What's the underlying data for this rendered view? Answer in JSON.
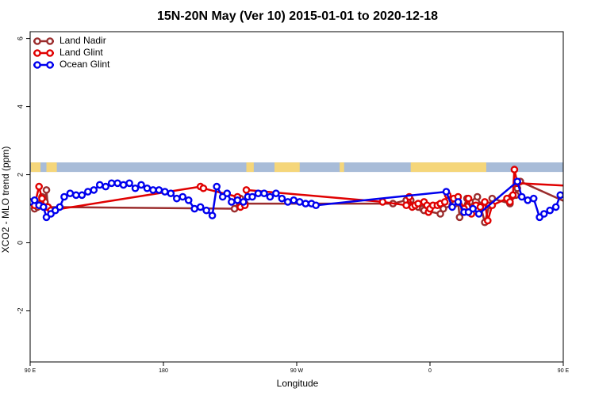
{
  "chart_data": {
    "type": "line",
    "title": "15N-20N May (Ver 10)   2015-01-01 to 2020-12-18",
    "xlabel": "Longitude",
    "ylabel": "XCO2 - MLO trend (ppm)",
    "xlim": [
      90,
      450
    ],
    "ylim": [
      -3.5,
      6.2
    ],
    "xticks": [
      {
        "value": 90,
        "label": "90 E"
      },
      {
        "value": 180,
        "label": "180"
      },
      {
        "value": 270,
        "label": "90 W"
      },
      {
        "value": 360,
        "label": "0"
      },
      {
        "value": 450,
        "label": "90 E"
      },
      {
        "value": 540,
        "label": "180"
      }
    ],
    "yticks": [
      -2,
      0,
      2,
      4,
      6
    ],
    "grid": false,
    "legend_position": "top-left",
    "land_strip": {
      "y_range": [
        2.08,
        2.36
      ],
      "ocean_color": "#a8bcd8",
      "land_color": "#f5d67a",
      "land_segments": [
        [
          90.5,
          97
        ],
        [
          101,
          108
        ],
        [
          236,
          241
        ],
        [
          255,
          272
        ],
        [
          299,
          302
        ],
        [
          347,
          398
        ],
        [
          485,
          498
        ],
        [
          504,
          520
        ]
      ]
    },
    "series": [
      {
        "name": "Land Nadir",
        "color": "#9b2d2d",
        "points": [
          [
            93,
            1.0
          ],
          [
            95,
            1.05
          ],
          [
            97,
            1.15
          ],
          [
            98,
            1.35
          ],
          [
            100,
            1.2
          ],
          [
            101,
            1.55
          ],
          [
            102,
            1.05
          ],
          [
            228,
            1.0
          ],
          [
            232,
            1.3
          ],
          [
            235,
            1.15
          ],
          [
            335,
            1.15
          ],
          [
            344,
            1.25
          ],
          [
            347,
            1.25
          ],
          [
            352,
            1.05
          ],
          [
            355,
            1.0
          ],
          [
            356,
            0.95
          ],
          [
            367,
            0.85
          ],
          [
            369,
            1.0
          ],
          [
            375,
            1.1
          ],
          [
            377,
            1.15
          ],
          [
            379,
            1.2
          ],
          [
            380,
            0.75
          ],
          [
            385,
            1.3
          ],
          [
            387,
            1.2
          ],
          [
            392,
            1.35
          ],
          [
            394,
            1.1
          ],
          [
            397,
            0.6
          ],
          [
            400,
            1.1
          ],
          [
            402,
            1.3
          ],
          [
            414,
            1.15
          ],
          [
            415,
            1.35
          ],
          [
            418,
            1.4
          ],
          [
            419,
            1.6
          ],
          [
            421,
            1.8
          ],
          [
            462,
            1.0
          ],
          [
            464,
            1.1
          ],
          [
            466,
            1.2
          ],
          [
            468,
            1.3
          ],
          [
            469,
            1.55
          ],
          [
            471,
            1.1
          ]
        ]
      },
      {
        "name": "Land Glint",
        "color": "#e00000",
        "points": [
          [
            93,
            1.1
          ],
          [
            96,
            1.65
          ],
          [
            98,
            1.3
          ],
          [
            100,
            1.05
          ],
          [
            102,
            1.05
          ],
          [
            104,
            0.95
          ],
          [
            205,
            1.65
          ],
          [
            207,
            1.6
          ],
          [
            230,
            1.35
          ],
          [
            232,
            1.05
          ],
          [
            235,
            1.1
          ],
          [
            236,
            1.55
          ],
          [
            328,
            1.2
          ],
          [
            344,
            1.1
          ],
          [
            346,
            1.35
          ],
          [
            348,
            1.05
          ],
          [
            350,
            1.1
          ],
          [
            352,
            1.15
          ],
          [
            356,
            1.2
          ],
          [
            358,
            1.1
          ],
          [
            359,
            0.9
          ],
          [
            360,
            1.0
          ],
          [
            362,
            1.1
          ],
          [
            365,
            1.1
          ],
          [
            367,
            1.15
          ],
          [
            370,
            1.2
          ],
          [
            372,
            1.4
          ],
          [
            376,
            1.3
          ],
          [
            379,
            1.35
          ],
          [
            383,
            1.0
          ],
          [
            386,
            1.3
          ],
          [
            388,
            0.85
          ],
          [
            391,
            1.1
          ],
          [
            394,
            1.05
          ],
          [
            397,
            1.2
          ],
          [
            399,
            0.65
          ],
          [
            402,
            1.1
          ],
          [
            412,
            1.3
          ],
          [
            414,
            1.2
          ],
          [
            416,
            1.4
          ],
          [
            417,
            2.15
          ],
          [
            419,
            1.75
          ],
          [
            465,
            1.65
          ],
          [
            467,
            1.2
          ],
          [
            469,
            1.1
          ],
          [
            471,
            1.0
          ],
          [
            473,
            1.1
          ]
        ]
      },
      {
        "name": "Ocean Glint",
        "color": "#0000ee",
        "points": [
          [
            90,
            1.2
          ],
          [
            93,
            1.25
          ],
          [
            96,
            1.1
          ],
          [
            99,
            1.05
          ],
          [
            101,
            0.75
          ],
          [
            104,
            0.85
          ],
          [
            107,
            0.95
          ],
          [
            110,
            1.05
          ],
          [
            113,
            1.35
          ],
          [
            117,
            1.45
          ],
          [
            121,
            1.4
          ],
          [
            125,
            1.4
          ],
          [
            129,
            1.5
          ],
          [
            133,
            1.55
          ],
          [
            137,
            1.7
          ],
          [
            141,
            1.65
          ],
          [
            145,
            1.75
          ],
          [
            149,
            1.75
          ],
          [
            153,
            1.7
          ],
          [
            157,
            1.75
          ],
          [
            161,
            1.6
          ],
          [
            165,
            1.7
          ],
          [
            169,
            1.6
          ],
          [
            173,
            1.55
          ],
          [
            177,
            1.55
          ],
          [
            181,
            1.5
          ],
          [
            185,
            1.45
          ],
          [
            189,
            1.3
          ],
          [
            193,
            1.35
          ],
          [
            197,
            1.25
          ],
          [
            201,
            1.0
          ],
          [
            205,
            1.05
          ],
          [
            209,
            0.95
          ],
          [
            213,
            0.8
          ],
          [
            216,
            1.65
          ],
          [
            220,
            1.35
          ],
          [
            223,
            1.45
          ],
          [
            226,
            1.2
          ],
          [
            230,
            1.25
          ],
          [
            234,
            1.2
          ],
          [
            237,
            1.35
          ],
          [
            240,
            1.35
          ],
          [
            244,
            1.45
          ],
          [
            248,
            1.45
          ],
          [
            252,
            1.35
          ],
          [
            256,
            1.45
          ],
          [
            260,
            1.3
          ],
          [
            264,
            1.2
          ],
          [
            268,
            1.25
          ],
          [
            272,
            1.2
          ],
          [
            276,
            1.15
          ],
          [
            280,
            1.15
          ],
          [
            283,
            1.1
          ],
          [
            371,
            1.5
          ],
          [
            375,
            1.05
          ],
          [
            379,
            1.2
          ],
          [
            383,
            0.9
          ],
          [
            386,
            0.9
          ],
          [
            389,
            1.0
          ],
          [
            393,
            0.85
          ],
          [
            419,
            1.8
          ],
          [
            422,
            1.35
          ],
          [
            426,
            1.25
          ],
          [
            430,
            1.3
          ],
          [
            434,
            0.75
          ],
          [
            437,
            0.85
          ],
          [
            441,
            0.95
          ],
          [
            445,
            1.05
          ],
          [
            448,
            1.4
          ],
          [
            452,
            1.45
          ],
          [
            456,
            1.4
          ],
          [
            460,
            1.35
          ],
          [
            464,
            1.55
          ],
          [
            468,
            1.55
          ],
          [
            472,
            1.75
          ],
          [
            476,
            1.7
          ],
          [
            480,
            1.75
          ],
          [
            484,
            1.75
          ],
          [
            488,
            1.65
          ]
        ]
      }
    ]
  }
}
